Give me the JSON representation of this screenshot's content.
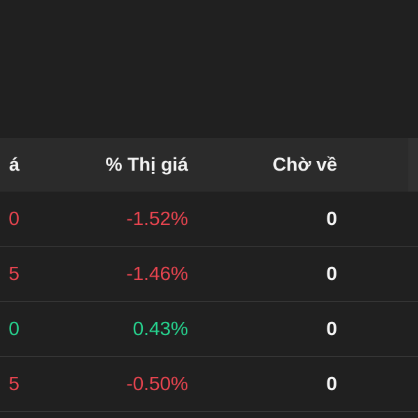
{
  "header": {
    "col1_fragment": "á",
    "col2": "% Thị giá",
    "col3": "Chờ về"
  },
  "rows": [
    {
      "col1_fragment": "0",
      "col1_color": "red",
      "pct": "-1.52%",
      "pct_color": "red",
      "pending": "0"
    },
    {
      "col1_fragment": "5",
      "col1_color": "red",
      "pct": "-1.46%",
      "pct_color": "red",
      "pending": "0"
    },
    {
      "col1_fragment": "0",
      "col1_color": "green",
      "pct": "0.43%",
      "pct_color": "green",
      "pending": "0"
    },
    {
      "col1_fragment": "5",
      "col1_color": "red",
      "pct": "-0.50%",
      "pct_color": "red",
      "pending": "0"
    }
  ],
  "colors": {
    "background": "#202020",
    "header_background": "#2b2b2b",
    "negative": "#e8444f",
    "positive": "#26d48f",
    "text": "#f5f5f5"
  }
}
